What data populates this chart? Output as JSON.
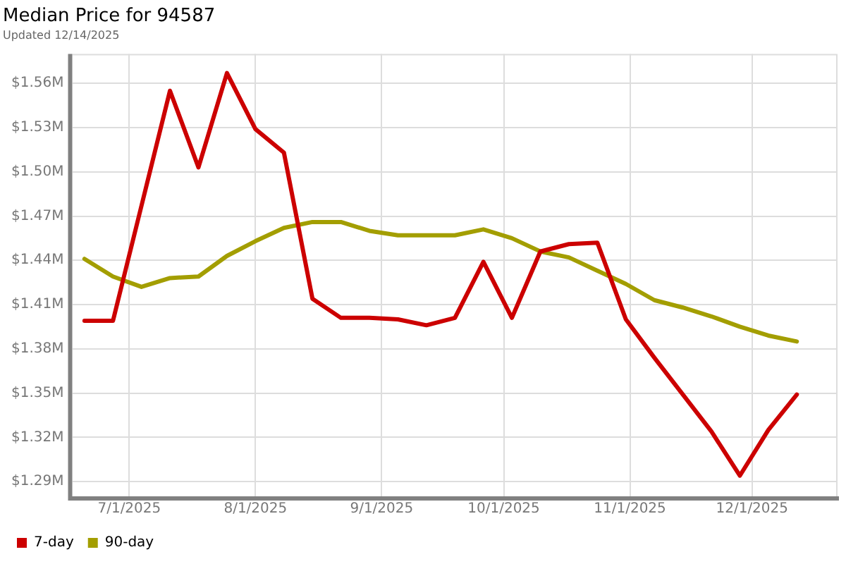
{
  "chart_data": {
    "type": "line",
    "title": "Median Price for 94587",
    "subtitle": "Updated 12/14/2025",
    "x": [
      "2025-06-20",
      "2025-06-27",
      "2025-07-04",
      "2025-07-11",
      "2025-07-18",
      "2025-07-25",
      "2025-08-01",
      "2025-08-08",
      "2025-08-15",
      "2025-08-22",
      "2025-08-29",
      "2025-09-05",
      "2025-09-12",
      "2025-09-19",
      "2025-09-26",
      "2025-10-03",
      "2025-10-10",
      "2025-10-17",
      "2025-10-24",
      "2025-10-31",
      "2025-11-07",
      "2025-11-14",
      "2025-11-21",
      "2025-11-28",
      "2025-12-05",
      "2025-12-12"
    ],
    "series": [
      {
        "name": "7-day",
        "color": "#cc0000",
        "values": [
          1.399,
          1.399,
          1.477,
          1.555,
          1.503,
          1.567,
          1.529,
          1.513,
          1.414,
          1.401,
          1.401,
          1.4,
          1.396,
          1.401,
          1.439,
          1.401,
          1.446,
          1.451,
          1.452,
          1.4,
          1.374,
          1.349,
          1.324,
          1.294,
          1.325,
          1.349
        ]
      },
      {
        "name": "90-day",
        "color": "#a39e00",
        "values": [
          1.441,
          1.429,
          1.422,
          1.428,
          1.429,
          1.443,
          1.453,
          1.462,
          1.466,
          1.466,
          1.46,
          1.457,
          1.457,
          1.457,
          1.461,
          1.455,
          1.446,
          1.442,
          1.433,
          1.424,
          1.413,
          1.408,
          1.402,
          1.395,
          1.389,
          1.385
        ]
      }
    ],
    "xlim": [
      "2025-06-17",
      "2025-12-22"
    ],
    "xticks": [
      {
        "value": "2025-07-01",
        "label": "7/1/2025"
      },
      {
        "value": "2025-08-01",
        "label": "8/1/2025"
      },
      {
        "value": "2025-09-01",
        "label": "9/1/2025"
      },
      {
        "value": "2025-10-01",
        "label": "10/1/2025"
      },
      {
        "value": "2025-11-01",
        "label": "11/1/2025"
      },
      {
        "value": "2025-12-01",
        "label": "12/1/2025"
      }
    ],
    "ylim": [
      1.28,
      1.58
    ],
    "yticks": [
      {
        "value": 1.29,
        "label": "$1.29M"
      },
      {
        "value": 1.32,
        "label": "$1.32M"
      },
      {
        "value": 1.35,
        "label": "$1.35M"
      },
      {
        "value": 1.38,
        "label": "$1.38M"
      },
      {
        "value": 1.41,
        "label": "$1.41M"
      },
      {
        "value": 1.44,
        "label": "$1.44M"
      },
      {
        "value": 1.47,
        "label": "$1.47M"
      },
      {
        "value": 1.5,
        "label": "$1.50M"
      },
      {
        "value": 1.53,
        "label": "$1.53M"
      },
      {
        "value": 1.56,
        "label": "$1.56M"
      }
    ],
    "grid": true,
    "legend": "bottom left",
    "marker": "none",
    "line_style": "solid"
  }
}
